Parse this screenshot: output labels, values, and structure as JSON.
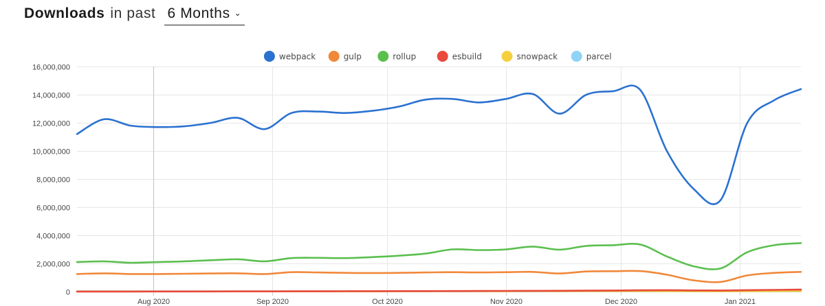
{
  "header": {
    "title": "Downloads",
    "in_past": "in past",
    "range_value": "6 Months"
  },
  "chart_data": {
    "type": "line",
    "ylim": [
      0,
      16000000
    ],
    "yticks": [
      0,
      2000000,
      4000000,
      6000000,
      8000000,
      10000000,
      12000000,
      14000000,
      16000000
    ],
    "ytick_labels": [
      "0",
      "2,000,000",
      "4,000,000",
      "6,000,000",
      "8,000,000",
      "10,000,000",
      "12,000,000",
      "14,000,000",
      "16,000,000"
    ],
    "xlim": [
      "2020-07-12",
      "2021-01-17"
    ],
    "xticks": [
      {
        "date": "2020-08-01",
        "label": "Aug 2020"
      },
      {
        "date": "2020-09-01",
        "label": "Sep 2020"
      },
      {
        "date": "2020-10-01",
        "label": "Oct 2020"
      },
      {
        "date": "2020-11-01",
        "label": "Nov 2020"
      },
      {
        "date": "2020-12-01",
        "label": "Dec 2020"
      },
      {
        "date": "2021-01-01",
        "label": "Jan 2021"
      }
    ],
    "highlight_date": "2020-08-01",
    "grid": true,
    "legend_placement": "top-center",
    "x": [
      "2020-07-12",
      "2020-07-19",
      "2020-07-26",
      "2020-08-02",
      "2020-08-09",
      "2020-08-16",
      "2020-08-23",
      "2020-08-30",
      "2020-09-06",
      "2020-09-13",
      "2020-09-20",
      "2020-09-27",
      "2020-10-04",
      "2020-10-11",
      "2020-10-18",
      "2020-10-25",
      "2020-11-01",
      "2020-11-08",
      "2020-11-15",
      "2020-11-22",
      "2020-11-29",
      "2020-12-06",
      "2020-12-13",
      "2020-12-20",
      "2020-12-27",
      "2021-01-03",
      "2021-01-10",
      "2021-01-17"
    ],
    "series": [
      {
        "name": "webpack",
        "color": "#2a71d0",
        "values": [
          11200000,
          12250000,
          11800000,
          11700000,
          11750000,
          12000000,
          12350000,
          11550000,
          12700000,
          12800000,
          12700000,
          12850000,
          13150000,
          13650000,
          13700000,
          13450000,
          13700000,
          14050000,
          12650000,
          14000000,
          14250000,
          14350000,
          10000000,
          7300000,
          6500000,
          12000000,
          13600000,
          14400000
        ]
      },
      {
        "name": "gulp",
        "color": "#f0883a",
        "values": [
          1250000,
          1300000,
          1250000,
          1250000,
          1270000,
          1290000,
          1300000,
          1250000,
          1380000,
          1360000,
          1330000,
          1320000,
          1330000,
          1360000,
          1380000,
          1360000,
          1380000,
          1400000,
          1290000,
          1430000,
          1450000,
          1460000,
          1200000,
          800000,
          690000,
          1150000,
          1330000,
          1400000
        ]
      },
      {
        "name": "rollup",
        "color": "#5bbf4e",
        "values": [
          2100000,
          2150000,
          2050000,
          2100000,
          2150000,
          2230000,
          2300000,
          2150000,
          2380000,
          2400000,
          2380000,
          2450000,
          2550000,
          2700000,
          3000000,
          2950000,
          3000000,
          3200000,
          2980000,
          3250000,
          3300000,
          3350000,
          2500000,
          1800000,
          1650000,
          2800000,
          3300000,
          3450000
        ]
      },
      {
        "name": "esbuild",
        "color": "#e94a3c",
        "values": [
          5000,
          6000,
          7000,
          8000,
          10000,
          12000,
          14000,
          15000,
          18000,
          20000,
          24000,
          28000,
          32000,
          36000,
          40000,
          44000,
          48000,
          55000,
          60000,
          70000,
          80000,
          95000,
          100000,
          85000,
          80000,
          100000,
          120000,
          140000
        ]
      },
      {
        "name": "snowpack",
        "color": "#f4d03f",
        "values": [
          8000,
          9000,
          10000,
          10000,
          12000,
          13000,
          14000,
          15000,
          17000,
          18000,
          19000,
          20000,
          22000,
          24000,
          26000,
          28000,
          30000,
          32000,
          31000,
          34000,
          35000,
          36000,
          28000,
          22000,
          20000,
          30000,
          35000,
          40000
        ]
      },
      {
        "name": "parcel",
        "color": "#8fd3f6",
        "values": [
          20000,
          21000,
          20000,
          20000,
          21000,
          21000,
          22000,
          21000,
          22000,
          22000,
          22000,
          22000,
          23000,
          23000,
          24000,
          24000,
          24000,
          25000,
          23000,
          25000,
          25000,
          26000,
          21000,
          17000,
          16000,
          22000,
          24000,
          25000
        ]
      }
    ]
  }
}
